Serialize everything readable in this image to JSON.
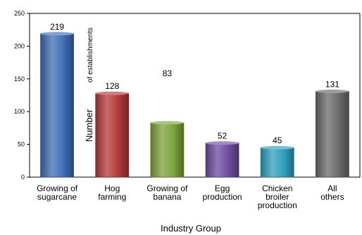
{
  "chart_data": {
    "type": "bar",
    "categories": [
      [
        "Growing of",
        "sugarcane"
      ],
      [
        "Hog",
        "farming"
      ],
      [
        "Growing of",
        "banana"
      ],
      [
        "Egg",
        "production"
      ],
      [
        "Chicken",
        "broiler",
        "production"
      ],
      [
        "All",
        "others"
      ]
    ],
    "values": [
      219,
      128,
      83,
      52,
      45,
      131
    ],
    "value_labels": [
      "219",
      "128",
      "83",
      "52",
      "45",
      "131"
    ],
    "bar_colors": [
      "#3F6FB5",
      "#B33A3A",
      "#7EA23B",
      "#6E4C9E",
      "#2F9FBF",
      "#6B6B6B"
    ],
    "xlabel": "Industry Group",
    "ylabel_parts": [
      "Number",
      "of establishments"
    ],
    "ylim": [
      0,
      250
    ],
    "yticks": [
      0,
      50,
      100,
      150,
      200,
      250
    ],
    "grid": false,
    "legend": "none"
  }
}
